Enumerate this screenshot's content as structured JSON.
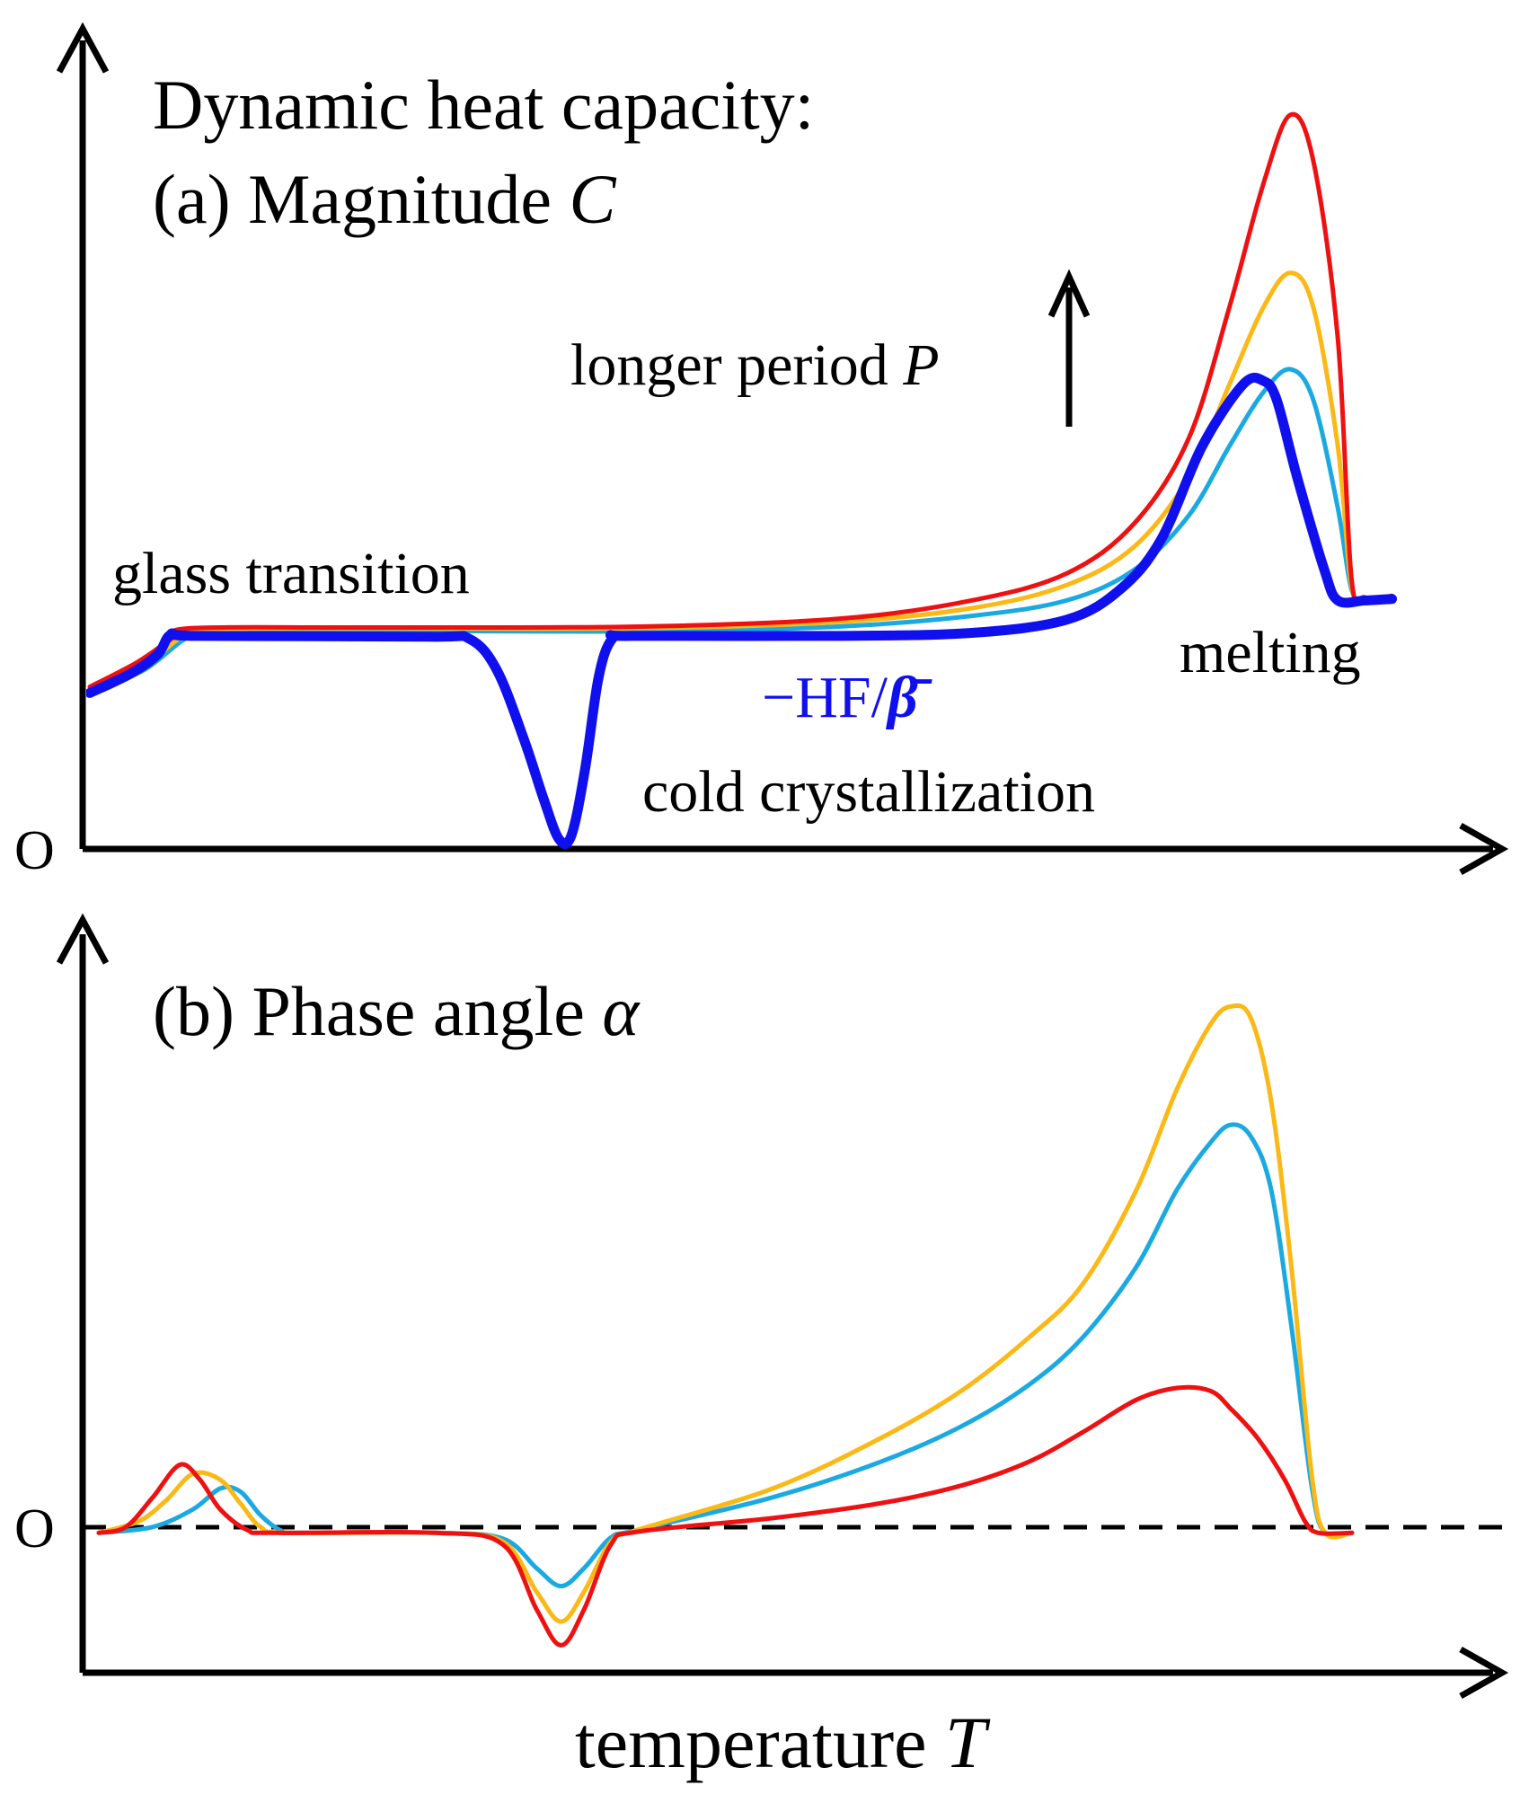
{
  "chart_data": [
    {
      "type": "line",
      "panel": "a",
      "title_line1": "Dynamic heat capacity:",
      "title_line2_prefix": "(a) Magnitude ",
      "title_line2_symbol": "C",
      "origin_label": "O",
      "x_range": [
        0,
        100
      ],
      "y_range": [
        0,
        100
      ],
      "annotations": {
        "glass_transition": "glass transition",
        "cold_crystallization": "cold crystallization",
        "melting": "melting",
        "period_text": "longer period ",
        "period_symbol": "P",
        "hf_prefix": "−HF/",
        "hf_symbol": "β̄"
      },
      "series": [
        {
          "name": "cyan",
          "color": "#1ba9e1",
          "width": 5,
          "points": [
            [
              0,
              20
            ],
            [
              4,
              23
            ],
            [
              7,
              27
            ],
            [
              9,
              28
            ],
            [
              20,
              28.1
            ],
            [
              40,
              28
            ],
            [
              55,
              28.6
            ],
            [
              65,
              30
            ],
            [
              72,
              32
            ],
            [
              77,
              36
            ],
            [
              81,
              43
            ],
            [
              84,
              52
            ],
            [
              86.5,
              59
            ],
            [
              88.5,
              62
            ],
            [
              90.2,
              58
            ],
            [
              92,
              44
            ],
            [
              93,
              33.5
            ],
            [
              94,
              32
            ],
            [
              96,
              32.2
            ]
          ]
        },
        {
          "name": "orange",
          "color": "#fbb917",
          "width": 5,
          "points": [
            [
              0,
              20.5
            ],
            [
              4,
              23.5
            ],
            [
              6.5,
              27
            ],
            [
              8,
              28.2
            ],
            [
              20,
              28.4
            ],
            [
              40,
              28.4
            ],
            [
              55,
              29.2
            ],
            [
              65,
              31
            ],
            [
              72,
              34
            ],
            [
              77,
              39
            ],
            [
              81,
              48
            ],
            [
              84,
              60
            ],
            [
              86.5,
              70
            ],
            [
              88.5,
              74.5
            ],
            [
              90.2,
              70
            ],
            [
              92,
              52
            ],
            [
              93,
              34
            ],
            [
              94,
              32.2
            ],
            [
              96,
              32.4
            ]
          ]
        },
        {
          "name": "red",
          "color": "#ee1111",
          "width": 5,
          "points": [
            [
              0,
              20.8
            ],
            [
              3.5,
              24
            ],
            [
              6,
              27
            ],
            [
              7.5,
              28.4
            ],
            [
              20,
              28.5
            ],
            [
              40,
              28.6
            ],
            [
              55,
              29.6
            ],
            [
              65,
              32
            ],
            [
              72,
              35.5
            ],
            [
              77,
              42
            ],
            [
              81,
              53
            ],
            [
              84,
              70
            ],
            [
              86.5,
              86
            ],
            [
              88.5,
              95
            ],
            [
              90.2,
              89
            ],
            [
              92,
              66
            ],
            [
              93,
              35
            ],
            [
              94,
              32.4
            ],
            [
              96,
              32.6
            ]
          ]
        },
        {
          "name": "−HF/β̄",
          "color": "#1010ee",
          "width": 11,
          "points": [
            [
              0,
              20
            ],
            [
              3,
              22.5
            ],
            [
              5,
              25
            ],
            [
              6,
              27.6
            ],
            [
              8,
              27.4
            ],
            [
              25,
              27.3
            ],
            [
              28,
              27
            ],
            [
              30,
              23
            ],
            [
              32,
              14
            ],
            [
              33.5,
              6
            ],
            [
              34.6,
              1
            ],
            [
              35.5,
              1.5
            ],
            [
              36.5,
              10
            ],
            [
              37.5,
              22
            ],
            [
              38.5,
              27
            ],
            [
              40,
              27.4
            ],
            [
              55,
              27.4
            ],
            [
              65,
              27.8
            ],
            [
              72,
              29.5
            ],
            [
              76,
              33.5
            ],
            [
              79,
              40
            ],
            [
              82,
              52
            ],
            [
              85,
              60
            ],
            [
              86.5,
              60.5
            ],
            [
              87.5,
              58
            ],
            [
              89,
              48
            ],
            [
              91,
              36
            ],
            [
              92,
              32
            ],
            [
              94,
              32
            ],
            [
              96,
              32.2
            ]
          ]
        }
      ]
    },
    {
      "type": "line",
      "panel": "b",
      "title_prefix": "(b) Phase angle ",
      "title_symbol": "α",
      "origin_label": "O",
      "x_label_prefix": "temperature ",
      "x_label_symbol": "T",
      "x_range": [
        0,
        100
      ],
      "y_range": [
        -20,
        100
      ],
      "zero_line": "dashed",
      "series": [
        {
          "name": "cyan",
          "color": "#1ba9e1",
          "width": 5,
          "points": [
            [
              0,
              0
            ],
            [
              4,
              1
            ],
            [
              7,
              4
            ],
            [
              9,
              7.5
            ],
            [
              10.5,
              7
            ],
            [
              12,
              3
            ],
            [
              13.5,
              0.4
            ],
            [
              15,
              0
            ],
            [
              25,
              0
            ],
            [
              30,
              -1
            ],
            [
              32.5,
              -6
            ],
            [
              34.3,
              -9
            ],
            [
              36,
              -6
            ],
            [
              38,
              -0.8
            ],
            [
              40,
              0.5
            ],
            [
              50,
              6
            ],
            [
              58,
              12
            ],
            [
              64,
              18
            ],
            [
              69,
              25
            ],
            [
              73,
              33
            ],
            [
              77,
              45
            ],
            [
              80,
              58
            ],
            [
              82.5,
              66
            ],
            [
              84,
              69
            ],
            [
              85.5,
              67
            ],
            [
              87,
              58
            ],
            [
              88.5,
              35
            ],
            [
              90,
              8
            ],
            [
              91,
              0
            ],
            [
              93,
              0
            ]
          ]
        },
        {
          "name": "orange",
          "color": "#fbb917",
          "width": 5,
          "points": [
            [
              0,
              0
            ],
            [
              3,
              2
            ],
            [
              5,
              5.5
            ],
            [
              7,
              10
            ],
            [
              9,
              9
            ],
            [
              10.5,
              5
            ],
            [
              12,
              1
            ],
            [
              14,
              0
            ],
            [
              25,
              0
            ],
            [
              30,
              -1.5
            ],
            [
              32.5,
              -10
            ],
            [
              34.3,
              -15
            ],
            [
              36,
              -10
            ],
            [
              38,
              -1.5
            ],
            [
              40,
              0.5
            ],
            [
              50,
              7.5
            ],
            [
              58,
              16
            ],
            [
              64,
              24
            ],
            [
              69,
              33
            ],
            [
              73,
              42
            ],
            [
              77,
              58
            ],
            [
              80,
              75
            ],
            [
              82.5,
              86
            ],
            [
              84,
              89
            ],
            [
              85.5,
              87
            ],
            [
              87,
              73
            ],
            [
              88.5,
              45
            ],
            [
              90,
              10
            ],
            [
              91,
              0
            ],
            [
              93,
              0
            ]
          ]
        },
        {
          "name": "red",
          "color": "#ee1111",
          "width": 5,
          "points": [
            [
              0,
              0
            ],
            [
              2,
              1
            ],
            [
              4,
              6
            ],
            [
              6,
              11.5
            ],
            [
              7.5,
              9
            ],
            [
              9,
              4
            ],
            [
              11,
              0.5
            ],
            [
              13,
              0
            ],
            [
              25,
              0
            ],
            [
              30,
              -2
            ],
            [
              32.5,
              -13
            ],
            [
              34.3,
              -19
            ],
            [
              36,
              -13
            ],
            [
              38,
              -2
            ],
            [
              40,
              0.2
            ],
            [
              50,
              2.5
            ],
            [
              58,
              5
            ],
            [
              64,
              8
            ],
            [
              69,
              12
            ],
            [
              73,
              17
            ],
            [
              77,
              22.5
            ],
            [
              80,
              24.5
            ],
            [
              82.5,
              24
            ],
            [
              84,
              21
            ],
            [
              86,
              16
            ],
            [
              88,
              9
            ],
            [
              89.5,
              2
            ],
            [
              90.5,
              0
            ],
            [
              93,
              0
            ]
          ]
        }
      ]
    }
  ]
}
